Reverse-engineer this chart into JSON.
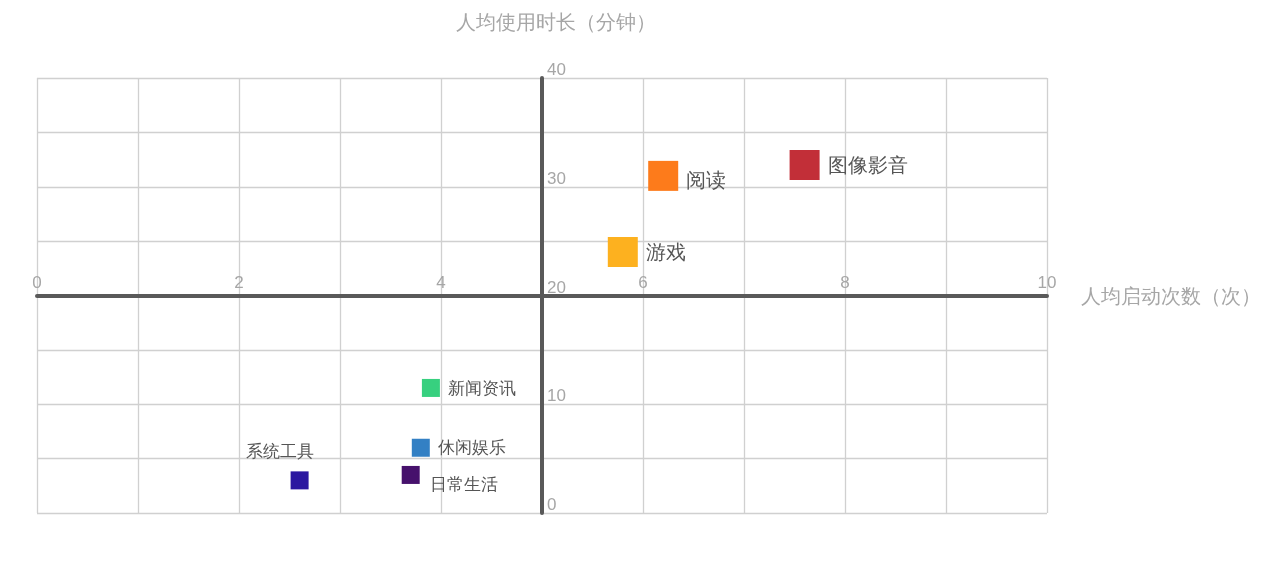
{
  "chart_data": {
    "type": "bubble",
    "xlabel": "人均启动次数（次）",
    "ylabel": "人均使用时长（分钟）",
    "xlim": [
      0,
      10
    ],
    "ylim": [
      0,
      40
    ],
    "xticks": [
      0,
      {
        "value": 1,
        "label": null
      },
      2,
      {
        "value": 3,
        "label": null
      },
      4,
      {
        "value": 5,
        "label": null
      },
      6,
      {
        "value": 7,
        "label": null
      },
      8,
      {
        "value": 9,
        "label": null
      },
      10
    ],
    "yticks": [
      0,
      {
        "value": 5,
        "label": null
      },
      10,
      {
        "value": 15,
        "label": null
      },
      20,
      {
        "value": 25,
        "label": null
      },
      30,
      {
        "value": 35,
        "label": null
      },
      40
    ],
    "grid": true,
    "marker": "square",
    "series": [
      {
        "name": "图像影音",
        "color": "#c22f38",
        "x": [
          7.6
        ],
        "values": [
          32
        ],
        "sizes": [
          1
        ]
      },
      {
        "name": "阅读",
        "color": "#fd7b1b",
        "x": [
          6.2
        ],
        "values": [
          31
        ],
        "sizes": [
          1
        ]
      },
      {
        "name": "游戏",
        "color": "#fdb11f",
        "x": [
          5.8
        ],
        "values": [
          24
        ],
        "sizes": [
          1
        ]
      },
      {
        "name": "新闻资讯",
        "color": "#37d07f",
        "x": [
          3.9
        ],
        "values": [
          11.5
        ],
        "sizes": [
          0.36
        ]
      },
      {
        "name": "休闲娱乐",
        "color": "#3380c4",
        "x": [
          3.8
        ],
        "values": [
          6
        ],
        "sizes": [
          0.36
        ]
      },
      {
        "name": "日常生活",
        "color": "#46116c",
        "x": [
          3.7
        ],
        "values": [
          3.5
        ],
        "sizes": [
          0.36
        ]
      },
      {
        "name": "系统工具",
        "color": "#2b17a0",
        "x": [
          2.6
        ],
        "values": [
          3
        ],
        "sizes": [
          0.36
        ]
      }
    ]
  }
}
